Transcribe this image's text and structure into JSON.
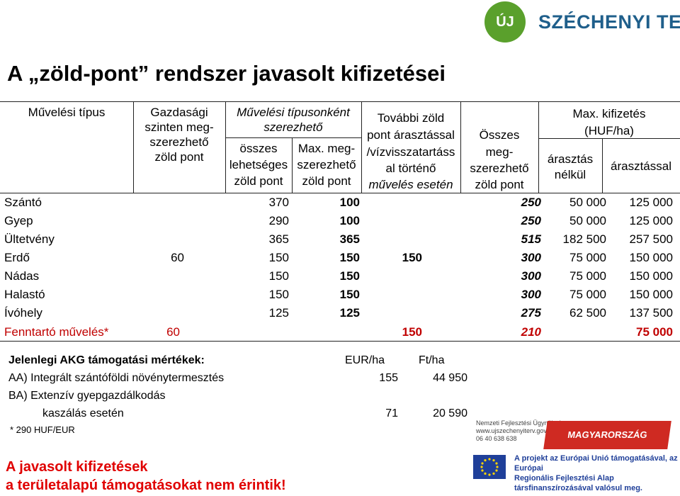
{
  "logo": {
    "short": "ÚJ",
    "name": "SZÉCHENYI TERV"
  },
  "title": "A „zöld-pont” rendszer javasolt kifizetései",
  "headers": {
    "col1": "Művelési típus",
    "col2_l1": "Gazdasági",
    "col2_l2": "szinten meg-",
    "col2_l3": "szerezhető",
    "col2_l4": "zöld pont",
    "group_l1": "Művelési típusonként",
    "group_l2": "szerezhető",
    "col3_l1": "összes",
    "col3_l2": "lehetséges",
    "col3_l3": "zöld pont",
    "col4_l1": "Max. meg-",
    "col4_l2": "szerezhető",
    "col4_l3": "zöld pont",
    "col5_l1": "További zöld",
    "col5_l2": "pont árasztással",
    "col5_l3": "/vízvisszatartáss",
    "col5_l4": "al történő",
    "col5_l5": "művelés esetén",
    "col6_l1": "Összes",
    "col6_l2": "meg-",
    "col6_l3": "szerezhető",
    "col6_l4": "zöld pont",
    "pay_l1": "Max. kifizetés",
    "pay_l2": "(HUF/ha)",
    "col7_l1": "árasztás",
    "col7_l2": "nélkül",
    "col8": "árasztással"
  },
  "rows": [
    {
      "label": "Szántó",
      "total": "370",
      "max": "100",
      "points": "250",
      "without": "50 000",
      "with": "125 000"
    },
    {
      "label": "Gyep",
      "total": "290",
      "max": "100",
      "points": "250",
      "without": "50 000",
      "with": "125 000"
    },
    {
      "label": "Ültetvény",
      "total": "365",
      "max": "365",
      "points": "515",
      "without": "182 500",
      "with": "257 500"
    },
    {
      "label": "Erdő",
      "total": "150",
      "max": "150",
      "points": "300",
      "without": "75 000",
      "with": "150 000"
    },
    {
      "label": "Nádas",
      "total": "150",
      "max": "150",
      "points": "300",
      "without": "75 000",
      "with": "150 000"
    },
    {
      "label": "Halastó",
      "total": "150",
      "max": "150",
      "points": "300",
      "without": "75 000",
      "with": "150 000"
    },
    {
      "label": "Ívóhely",
      "total": "125",
      "max": "125",
      "points": "275",
      "without": "62 500",
      "with": "137 500"
    }
  ],
  "merged": {
    "econ": "60",
    "extra": "150"
  },
  "maint": {
    "label": "Fenntartó művelés*",
    "econ": "60",
    "extra": "150",
    "points": "210",
    "with": "75 000"
  },
  "akg": {
    "title": "Jelenlegi AKG támogatási mértékek:",
    "eur_label": "EUR/ha",
    "ft_label": "Ft/ha",
    "line1": "AA) Integrált szántóföldi növénytermesztés",
    "line1_eur": "155",
    "line1_ft": "44 950",
    "line2": "BA) Extenzív gyepgazdálkodás",
    "line3": "kaszálás esetén",
    "line3_eur": "71",
    "line3_ft": "20 590",
    "note": "* 290 HUF/EUR"
  },
  "footer": {
    "line1": "A javasolt kifizetések",
    "line2": "a területalapú támogatásokat nem érintik!"
  },
  "badges": {
    "nfu_l1": "Nemzeti Fejlesztési Ügynökség",
    "nfu_l2": "www.ujszechenyiterv.gov.hu",
    "nfu_l3": "06 40 638 638",
    "mh": "MAGYARORSZÁG MEGÚJUL",
    "eu_l1": "A projekt az Európai Unió támogatásával, az Európai",
    "eu_l2": "Regionális Fejlesztési Alap társfinanszírozásával valósul meg."
  },
  "colors": {
    "red": "#c00000",
    "brand_green": "#5aa02c",
    "brand_blue": "#1f5f8b"
  }
}
